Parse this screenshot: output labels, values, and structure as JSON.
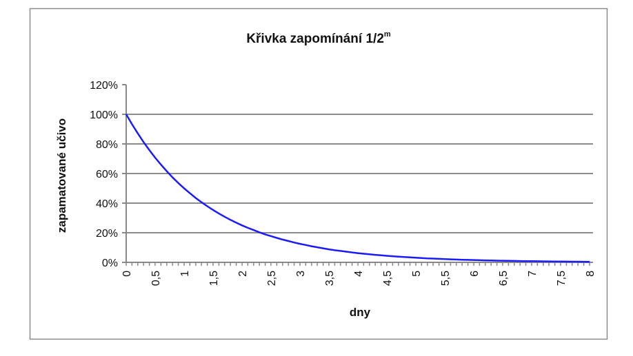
{
  "chart_data": {
    "type": "line",
    "title": "Křivka zapomínání 1/2",
    "title_superscript": "m",
    "xlabel": "dny",
    "ylabel": "zapamatované učivo",
    "ylim": [
      0,
      120
    ],
    "xlim": [
      0,
      8
    ],
    "y_ticks": [
      "0%",
      "20%",
      "40%",
      "60%",
      "80%",
      "100%",
      "120%"
    ],
    "x_ticks": [
      "0",
      "0,5",
      "1",
      "1,5",
      "2",
      "2,5",
      "3",
      "3,5",
      "4",
      "4,5",
      "5",
      "5,5",
      "6",
      "6,5",
      "7",
      "7,5",
      "8"
    ],
    "grid": true,
    "legend": "none",
    "series": [
      {
        "color": "#1a1aff",
        "x": [
          0,
          0.1,
          0.2,
          0.3,
          0.4,
          0.5,
          0.6,
          0.7,
          0.8,
          0.9,
          1,
          1.1,
          1.2,
          1.3,
          1.4,
          1.5,
          1.6,
          1.7,
          1.8,
          1.9,
          2,
          2.1,
          2.2,
          2.3,
          2.4,
          2.5,
          2.6,
          2.7,
          2.8,
          2.9,
          3,
          3.1,
          3.2,
          3.3,
          3.4,
          3.5,
          3.6,
          3.7,
          3.8,
          3.9,
          4,
          4.1,
          4.2,
          4.3,
          4.4,
          4.5,
          4.6,
          4.7,
          4.8,
          4.9,
          5,
          5.1,
          5.2,
          5.3,
          5.4,
          5.5,
          5.6,
          5.7,
          5.8,
          5.9,
          6,
          6.1,
          6.2,
          6.3,
          6.4,
          6.5,
          6.6,
          6.7,
          6.8,
          6.9,
          7,
          7.1,
          7.2,
          7.3,
          7.4,
          7.5,
          7.6,
          7.7,
          7.8,
          7.9,
          8
        ],
        "y": [
          100,
          93.3,
          87.1,
          81.2,
          75.8,
          70.7,
          66.0,
          61.6,
          57.4,
          53.6,
          50,
          46.7,
          43.5,
          40.6,
          37.9,
          35.4,
          33.0,
          30.8,
          28.7,
          26.8,
          25,
          23.3,
          21.8,
          20.3,
          18.9,
          17.7,
          16.5,
          15.4,
          14.4,
          13.4,
          12.5,
          11.7,
          10.9,
          10.2,
          9.5,
          8.8,
          8.2,
          7.7,
          7.2,
          6.7,
          6.25,
          5.83,
          5.44,
          5.08,
          4.74,
          4.42,
          4.12,
          3.85,
          3.59,
          3.35,
          3.125,
          2.92,
          2.72,
          2.54,
          2.37,
          2.21,
          2.06,
          1.92,
          1.79,
          1.67,
          1.56,
          1.46,
          1.36,
          1.27,
          1.18,
          1.1,
          1.03,
          0.96,
          0.9,
          0.84,
          0.78,
          0.73,
          0.68,
          0.63,
          0.59,
          0.55,
          0.52,
          0.48,
          0.45,
          0.42,
          0.39
        ]
      }
    ]
  }
}
